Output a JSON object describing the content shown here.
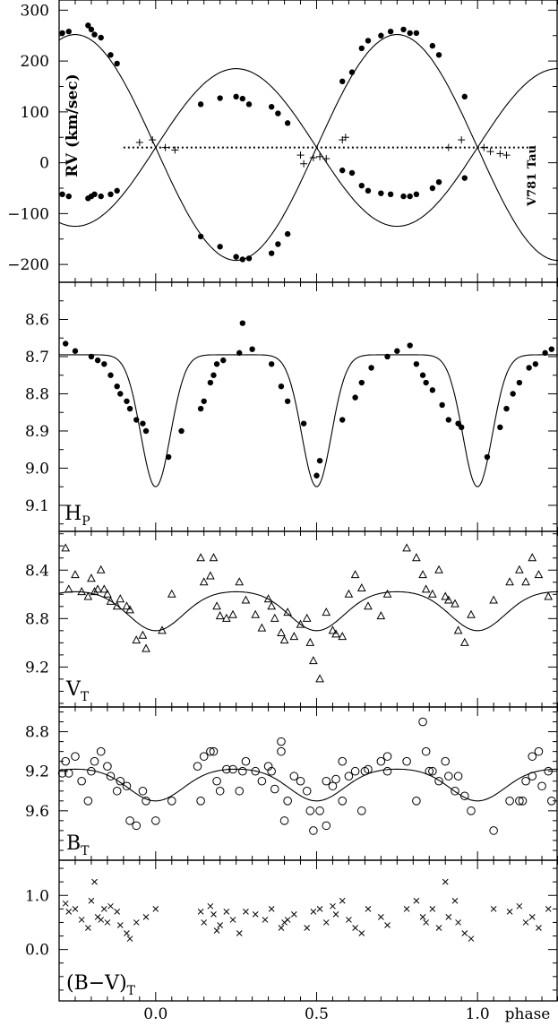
{
  "figure": {
    "star_label": "V781 Tau",
    "x_axis_label": "phase",
    "x_ticks": [
      "0.0",
      "0.5",
      "1.0"
    ]
  },
  "chart_data": [
    {
      "type": "scatter",
      "panel": "rv",
      "ylabel": "RV (km/sec)",
      "xlim": [
        -0.3,
        1.25
      ],
      "ylim": [
        -235,
        320
      ],
      "y_inverted": false,
      "yticks": [
        "300",
        "200",
        "100",
        "0",
        "-100",
        "-200"
      ],
      "systemic_velocity": 30,
      "series": [
        {
          "marker": "dot",
          "x": [
            -0.29,
            -0.27,
            -0.21,
            -0.2,
            -0.19,
            -0.17,
            -0.14,
            -0.12,
            0.14,
            0.2,
            0.25,
            0.27,
            0.29,
            0.36,
            0.38,
            0.41,
            0.58,
            0.61,
            0.64,
            0.66,
            0.7,
            0.73,
            0.77,
            0.79,
            0.81,
            0.86,
            0.88,
            0.96
          ],
          "y": [
            255,
            258,
            270,
            262,
            252,
            246,
            212,
            195,
            115,
            127,
            130,
            126,
            115,
            110,
            97,
            78,
            160,
            178,
            225,
            240,
            250,
            258,
            262,
            255,
            255,
            230,
            212,
            130
          ]
        },
        {
          "marker": "dot",
          "x": [
            -0.29,
            -0.27,
            -0.21,
            -0.2,
            -0.19,
            -0.17,
            -0.14,
            -0.12,
            0.14,
            0.2,
            0.25,
            0.27,
            0.29,
            0.36,
            0.38,
            0.41,
            0.58,
            0.61,
            0.64,
            0.66,
            0.7,
            0.73,
            0.77,
            0.79,
            0.81,
            0.86,
            0.88,
            0.96
          ],
          "y": [
            -62,
            -66,
            -70,
            -66,
            -62,
            -66,
            -62,
            -55,
            -145,
            -165,
            -185,
            -190,
            -188,
            -178,
            -160,
            -140,
            -15,
            -20,
            -45,
            -55,
            -60,
            -62,
            -66,
            -66,
            -62,
            -50,
            -38,
            -30
          ]
        },
        {
          "marker": "plus",
          "x": [
            -0.05,
            -0.01,
            0.03,
            0.06,
            0.45,
            0.46,
            0.49,
            0.51,
            0.53,
            0.58,
            0.59,
            0.91,
            0.95,
            1.02,
            1.04,
            1.07,
            1.09
          ],
          "y": [
            40,
            45,
            30,
            25,
            15,
            -2,
            10,
            12,
            8,
            45,
            50,
            30,
            45,
            30,
            22,
            18,
            15
          ]
        }
      ],
      "curves": [
        "primary",
        "secondary",
        "systemic-line"
      ]
    },
    {
      "type": "line",
      "panel": "hp",
      "ylabel": "HP",
      "ylabel_main": "H",
      "ylabel_sub": "P",
      "xlim": [
        -0.3,
        1.25
      ],
      "ylim": [
        9.17,
        8.5
      ],
      "y_inverted": true,
      "yticks": [
        "8.6",
        "8.7",
        "8.8",
        "8.9",
        "9.0",
        "9.1"
      ],
      "curve": {
        "max": 8.695,
        "depth": 0.355,
        "width": 0.065
      },
      "points": {
        "x": [
          -0.28,
          -0.25,
          -0.2,
          -0.18,
          -0.16,
          -0.14,
          -0.12,
          -0.11,
          -0.09,
          -0.08,
          -0.06,
          -0.04,
          -0.03,
          0.04,
          0.08,
          0.14,
          0.15,
          0.17,
          0.18,
          0.19,
          0.21,
          0.26,
          0.27,
          0.3,
          0.36,
          0.39,
          0.41,
          0.46,
          0.5,
          0.51,
          0.58,
          0.62,
          0.64,
          0.67,
          0.72,
          0.75,
          0.79,
          0.81,
          0.83,
          0.84,
          0.86,
          0.89,
          0.91,
          0.94,
          0.95,
          1.03,
          1.07,
          1.09,
          1.11,
          1.13,
          1.16,
          1.18,
          1.21,
          1.23
        ],
        "y": [
          8.665,
          8.685,
          8.7,
          8.71,
          8.72,
          8.75,
          8.78,
          8.8,
          8.82,
          8.84,
          8.87,
          8.88,
          8.9,
          8.97,
          8.9,
          8.84,
          8.82,
          8.77,
          8.75,
          8.72,
          8.71,
          8.69,
          8.61,
          8.68,
          8.72,
          8.78,
          8.82,
          8.88,
          9.02,
          8.98,
          8.87,
          8.81,
          8.77,
          8.73,
          8.7,
          8.685,
          8.67,
          8.72,
          8.75,
          8.77,
          8.79,
          8.83,
          8.87,
          8.88,
          8.89,
          8.97,
          8.89,
          8.84,
          8.8,
          8.77,
          8.73,
          8.72,
          8.69,
          8.68
        ]
      }
    },
    {
      "type": "line",
      "panel": "vt",
      "ylabel": "VT",
      "ylabel_main": "V",
      "ylabel_sub": "T",
      "xlim": [
        -0.3,
        1.25
      ],
      "ylim": [
        9.53,
        8.08
      ],
      "y_inverted": true,
      "yticks": [
        "8.4",
        "8.8",
        "9.2"
      ],
      "curve": {
        "max": 8.57,
        "depth": 0.33,
        "width": 0.12
      },
      "points": {
        "x": [
          -0.28,
          -0.27,
          -0.25,
          -0.23,
          -0.21,
          -0.2,
          -0.19,
          -0.18,
          -0.17,
          -0.16,
          -0.15,
          -0.14,
          -0.12,
          -0.11,
          -0.09,
          -0.08,
          -0.06,
          -0.04,
          -0.03,
          0.02,
          0.05,
          0.14,
          0.15,
          0.17,
          0.18,
          0.19,
          0.2,
          0.22,
          0.24,
          0.26,
          0.28,
          0.31,
          0.33,
          0.35,
          0.36,
          0.37,
          0.39,
          0.4,
          0.41,
          0.43,
          0.45,
          0.47,
          0.48,
          0.49,
          0.51,
          0.53,
          0.55,
          0.56,
          0.58,
          0.6,
          0.62,
          0.64,
          0.66,
          0.7,
          0.72,
          0.78,
          0.81,
          0.83,
          0.84,
          0.86,
          0.88,
          0.9,
          0.91,
          0.93,
          0.94,
          0.96,
          0.98,
          1.05,
          1.1,
          1.13,
          1.15,
          1.17,
          1.19,
          1.22
        ],
        "y": [
          8.22,
          8.56,
          8.44,
          8.58,
          8.62,
          8.47,
          8.58,
          8.56,
          8.4,
          8.56,
          8.6,
          8.66,
          8.7,
          8.64,
          8.7,
          8.73,
          8.98,
          8.94,
          9.05,
          8.9,
          8.6,
          8.3,
          8.5,
          8.45,
          8.3,
          8.7,
          8.78,
          8.8,
          8.77,
          8.5,
          8.65,
          8.77,
          8.88,
          8.64,
          8.7,
          8.8,
          8.92,
          8.98,
          8.75,
          8.95,
          8.85,
          8.8,
          9.0,
          9.15,
          9.3,
          8.75,
          8.9,
          8.93,
          8.95,
          8.6,
          8.44,
          8.55,
          8.7,
          8.78,
          8.6,
          8.22,
          8.3,
          8.44,
          8.56,
          8.6,
          8.4,
          8.62,
          8.65,
          8.68,
          8.9,
          9.0,
          8.77,
          8.65,
          8.5,
          8.4,
          8.5,
          8.3,
          8.44,
          8.62
        ]
      }
    },
    {
      "type": "line",
      "panel": "bt",
      "ylabel": "BT",
      "ylabel_main": "B",
      "ylabel_sub": "T",
      "xlim": [
        -0.3,
        1.25
      ],
      "ylim": [
        10.1,
        8.55
      ],
      "y_inverted": true,
      "yticks": [
        "8.8",
        "9.2",
        "9.6"
      ],
      "curve": {
        "max": 9.17,
        "depth": 0.33,
        "width": 0.12
      },
      "points": {
        "x": [
          -0.28,
          -0.27,
          -0.25,
          -0.23,
          -0.21,
          -0.2,
          -0.19,
          -0.17,
          -0.15,
          -0.14,
          -0.12,
          -0.11,
          -0.09,
          -0.08,
          -0.06,
          -0.04,
          -0.03,
          0.0,
          0.05,
          0.14,
          0.15,
          0.17,
          0.18,
          0.19,
          0.2,
          0.22,
          0.24,
          0.26,
          0.28,
          0.31,
          0.33,
          0.35,
          0.36,
          0.37,
          0.39,
          0.4,
          0.41,
          0.43,
          0.45,
          0.47,
          0.48,
          0.49,
          0.51,
          0.53,
          0.55,
          0.56,
          0.58,
          0.6,
          0.62,
          0.64,
          0.66,
          0.7,
          0.72,
          0.78,
          0.81,
          0.83,
          0.84,
          0.86,
          0.88,
          0.9,
          0.91,
          0.93,
          0.94,
          0.96,
          0.98,
          1.05,
          1.1,
          1.13,
          1.15,
          1.17,
          1.19,
          1.22
        ],
        "y": [
          9.1,
          9.22,
          9.05,
          9.3,
          9.5,
          9.2,
          9.1,
          9.0,
          9.15,
          9.25,
          9.4,
          9.3,
          9.35,
          9.7,
          9.75,
          9.4,
          9.5,
          9.7,
          9.5,
          9.5,
          9.05,
          9.0,
          9.0,
          9.3,
          9.4,
          9.18,
          9.18,
          9.4,
          9.1,
          9.2,
          9.3,
          9.15,
          9.2,
          9.38,
          9.0,
          9.7,
          9.5,
          9.25,
          9.3,
          9.4,
          9.6,
          9.8,
          9.6,
          9.3,
          9.35,
          9.28,
          9.1,
          9.25,
          9.2,
          9.6,
          9.18,
          9.1,
          9.2,
          9.1,
          9.5,
          8.7,
          9.0,
          9.2,
          9.3,
          9.1,
          9.25,
          9.4,
          9.25,
          9.45,
          9.6,
          9.8,
          9.5,
          9.5,
          9.3,
          9.05,
          9.0,
          9.2
        ],
        "extra_x": [
          -0.29,
          0.13,
          0.27,
          0.39,
          0.53,
          0.58,
          0.65,
          0.72,
          0.85,
          1.14,
          1.17,
          1.2,
          1.23
        ],
        "extra_y": [
          9.22,
          9.15,
          9.2,
          8.9,
          9.75,
          9.5,
          9.2,
          9.05,
          9.2,
          9.5,
          9.25,
          9.35,
          9.5
        ]
      }
    },
    {
      "type": "scatter",
      "panel": "bv",
      "ylabel": "(B-V)T",
      "ylabel_main": "(B−V)",
      "ylabel_sub": "T",
      "xlim": [
        -0.3,
        1.25
      ],
      "ylim": [
        -0.95,
        1.65
      ],
      "y_inverted": false,
      "yticks": [
        "1.0",
        "0.0"
      ],
      "points": {
        "x": [
          -0.28,
          -0.27,
          -0.25,
          -0.23,
          -0.21,
          -0.2,
          -0.19,
          -0.18,
          -0.17,
          -0.16,
          -0.15,
          -0.14,
          -0.12,
          -0.11,
          -0.09,
          -0.08,
          -0.06,
          -0.03,
          0.0,
          0.14,
          0.15,
          0.17,
          0.18,
          0.19,
          0.2,
          0.22,
          0.24,
          0.26,
          0.28,
          0.31,
          0.34,
          0.36,
          0.39,
          0.4,
          0.41,
          0.43,
          0.47,
          0.49,
          0.51,
          0.53,
          0.55,
          0.56,
          0.58,
          0.6,
          0.62,
          0.64,
          0.66,
          0.7,
          0.72,
          0.78,
          0.81,
          0.83,
          0.84,
          0.86,
          0.88,
          0.9,
          0.91,
          0.93,
          0.94,
          0.96,
          0.98,
          1.05,
          1.1,
          1.13,
          1.15,
          1.17,
          1.19,
          1.22
        ],
        "y": [
          0.85,
          0.7,
          0.75,
          0.55,
          0.4,
          0.9,
          1.25,
          0.6,
          0.55,
          0.75,
          0.5,
          0.8,
          0.7,
          0.45,
          0.3,
          0.2,
          0.5,
          0.6,
          0.75,
          0.7,
          0.5,
          0.8,
          0.65,
          0.35,
          0.45,
          0.7,
          0.55,
          0.3,
          0.7,
          0.65,
          0.55,
          0.75,
          0.4,
          0.5,
          0.55,
          0.65,
          0.4,
          0.7,
          0.75,
          0.5,
          0.8,
          0.65,
          0.9,
          0.55,
          0.4,
          0.3,
          0.75,
          0.6,
          0.45,
          0.75,
          0.9,
          0.6,
          0.5,
          0.75,
          0.4,
          1.25,
          0.6,
          0.9,
          0.5,
          0.3,
          0.2,
          0.75,
          0.7,
          0.8,
          0.5,
          0.6,
          0.4,
          0.75
        ]
      }
    }
  ]
}
